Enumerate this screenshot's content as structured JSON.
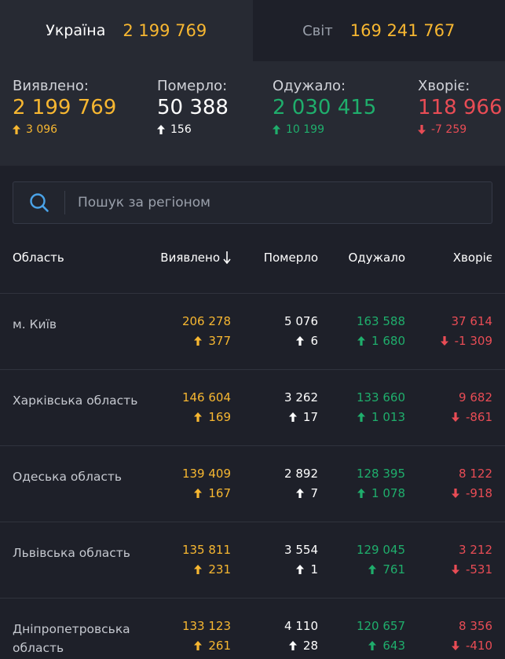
{
  "tabs": [
    {
      "label": "Україна",
      "value": "2 199 769"
    },
    {
      "label": "Світ",
      "value": "169 241 767"
    }
  ],
  "summary": {
    "confirmed": {
      "label": "Виявлено:",
      "value": "2 199 769",
      "delta": "3 096"
    },
    "deaths": {
      "label": "Померло:",
      "value": "50 388",
      "delta": "156"
    },
    "recovered": {
      "label": "Одужало:",
      "value": "2 030 415",
      "delta": "10 199"
    },
    "sick": {
      "label": "Хворіє:",
      "value": "118 966",
      "delta": "-7 259"
    }
  },
  "search": {
    "placeholder": "Пошук за регіоном"
  },
  "table": {
    "headers": {
      "region": "Область",
      "confirmed": "Виявлено",
      "deaths": "Померло",
      "recovered": "Одужало",
      "sick": "Хворіє"
    },
    "rows": [
      {
        "region": "м. Київ",
        "confirmed": "206 278",
        "confirmed_delta": "377",
        "deaths": "5 076",
        "deaths_delta": "6",
        "recovered": "163 588",
        "recovered_delta": "1 680",
        "sick": "37 614",
        "sick_delta": "-1 309"
      },
      {
        "region": "Харківська область",
        "confirmed": "146 604",
        "confirmed_delta": "169",
        "deaths": "3 262",
        "deaths_delta": "17",
        "recovered": "133 660",
        "recovered_delta": "1 013",
        "sick": "9 682",
        "sick_delta": "-861"
      },
      {
        "region": "Одеська область",
        "confirmed": "139 409",
        "confirmed_delta": "167",
        "deaths": "2 892",
        "deaths_delta": "7",
        "recovered": "128 395",
        "recovered_delta": "1 078",
        "sick": "8 122",
        "sick_delta": "-918"
      },
      {
        "region": "Львівська область",
        "confirmed": "135 811",
        "confirmed_delta": "231",
        "deaths": "3 554",
        "deaths_delta": "1",
        "recovered": "129 045",
        "recovered_delta": "761",
        "sick": "3 212",
        "sick_delta": "-531"
      },
      {
        "region": "Дніпропетровська область",
        "confirmed": "133 123",
        "confirmed_delta": "261",
        "deaths": "4 110",
        "deaths_delta": "28",
        "recovered": "120 657",
        "recovered_delta": "643",
        "sick": "8 356",
        "sick_delta": "-410"
      }
    ]
  },
  "colors": {
    "confirmed": "#f7b731",
    "deaths": "#ffffff",
    "recovered": "#1fae6c",
    "sick": "#e84c55",
    "background": "#1e2029",
    "panel": "#272a33"
  },
  "icons": {
    "search": "search-icon",
    "up": "arrow-up-icon",
    "down": "arrow-down-icon",
    "sort": "sort-down-arrow-icon"
  }
}
